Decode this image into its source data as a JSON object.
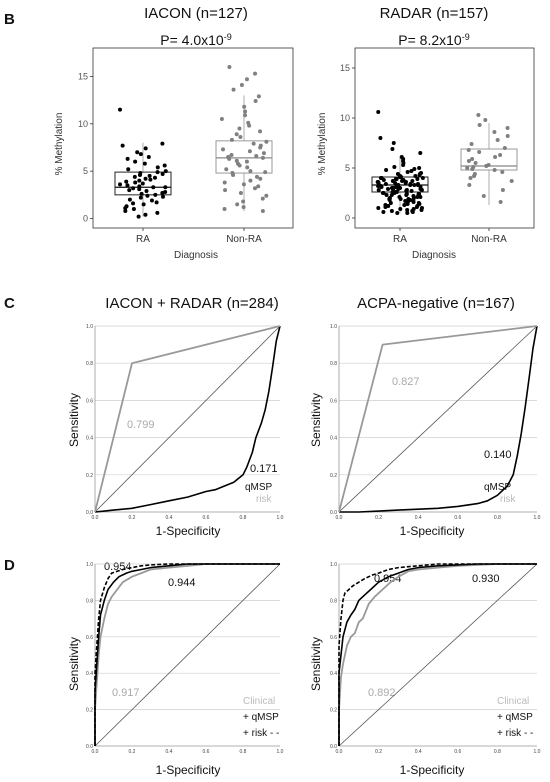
{
  "panels": {
    "B": {
      "label": "B",
      "charts": [
        {
          "type": "box-scatter",
          "title": "IACON (n=127)",
          "pvalue_prefix": "P= 4.0x10",
          "pvalue_exp": "-9",
          "ylabel": "% Methylation",
          "xlabel": "Diagnosis",
          "categories": [
            "RA",
            "Non-RA"
          ],
          "ylim": [
            -1,
            18
          ],
          "yticks": [
            0,
            5,
            10,
            15
          ],
          "colors": {
            "RA": "#000000",
            "Non-RA": "#808080"
          },
          "boxes": {
            "RA": {
              "q1": 2.5,
              "median": 3.3,
              "q3": 4.9,
              "whisker_low": 0.2,
              "whisker_high": 8.0
            },
            "Non-RA": {
              "q1": 4.8,
              "median": 6.4,
              "q3": 8.2,
              "whisker_low": 0.8,
              "whisker_high": 13.0
            }
          },
          "points": {
            "RA": [
              11.5,
              7.9,
              7.7,
              7.4,
              7.0,
              6.8,
              6.5,
              6.3,
              6.0,
              5.8,
              5.6,
              5.4,
              5.2,
              5.0,
              4.9,
              4.8,
              4.7,
              4.6,
              4.5,
              4.4,
              4.3,
              4.2,
              4.1,
              4.0,
              3.9,
              3.8,
              3.7,
              3.6,
              3.5,
              3.4,
              3.3,
              3.3,
              3.2,
              3.1,
              3.0,
              2.9,
              2.8,
              2.7,
              2.6,
              2.5,
              2.4,
              2.3,
              2.2,
              2.0,
              1.9,
              1.7,
              1.6,
              1.5,
              1.3,
              1.1,
              1.0,
              0.8,
              0.6,
              0.4,
              0.2
            ],
            "Non-RA": [
              16.0,
              15.3,
              14.7,
              14.1,
              13.6,
              12.9,
              12.4,
              11.8,
              11.3,
              10.9,
              10.5,
              10.1,
              9.8,
              9.5,
              9.2,
              8.9,
              8.6,
              8.3,
              8.1,
              7.9,
              7.7,
              7.5,
              7.3,
              7.1,
              6.9,
              6.7,
              6.6,
              6.5,
              6.4,
              6.3,
              6.1,
              6.0,
              5.8,
              5.6,
              5.4,
              5.2,
              5.0,
              4.9,
              4.8,
              4.6,
              4.4,
              4.2,
              4.0,
              3.8,
              3.6,
              3.4,
              3.2,
              3.0,
              2.7,
              2.4,
              2.1,
              1.8,
              1.5,
              1.2,
              1.0,
              0.8
            ]
          }
        },
        {
          "type": "box-scatter",
          "title": "RADAR (n=157)",
          "pvalue_prefix": "P= 8.2x10",
          "pvalue_exp": "-9",
          "ylabel": "% Methylation",
          "xlabel": "Diagnosis",
          "categories": [
            "RA",
            "Non-RA"
          ],
          "ylim": [
            -1,
            17
          ],
          "yticks": [
            0,
            5,
            10,
            15
          ],
          "colors": {
            "RA": "#000000",
            "Non-RA": "#808080"
          },
          "boxes": {
            "RA": {
              "q1": 2.6,
              "median": 3.3,
              "q3": 4.1,
              "whisker_low": 0.5,
              "whisker_high": 6.1
            },
            "Non-RA": {
              "q1": 4.8,
              "median": 5.2,
              "q3": 6.9,
              "whisker_low": 1.3,
              "whisker_high": 9.5
            }
          },
          "points": {
            "RA": [
              10.6,
              8.0,
              7.5,
              6.9,
              6.5,
              6.1,
              5.9,
              5.7,
              5.5,
              5.3,
              5.1,
              5.0,
              4.9,
              4.8,
              4.7,
              4.6,
              4.5,
              4.4,
              4.3,
              4.2,
              4.1,
              4.1,
              4.0,
              4.0,
              3.9,
              3.9,
              3.8,
              3.8,
              3.7,
              3.7,
              3.6,
              3.6,
              3.5,
              3.5,
              3.4,
              3.4,
              3.3,
              3.3,
              3.3,
              3.2,
              3.2,
              3.1,
              3.1,
              3.0,
              3.0,
              2.9,
              2.9,
              2.8,
              2.8,
              2.7,
              2.7,
              2.6,
              2.6,
              2.5,
              2.5,
              2.4,
              2.4,
              2.3,
              2.3,
              2.2,
              2.2,
              2.1,
              2.1,
              2.0,
              2.0,
              1.9,
              1.9,
              1.8,
              1.8,
              1.7,
              1.7,
              1.6,
              1.6,
              1.5,
              1.5,
              1.4,
              1.4,
              1.3,
              1.3,
              1.2,
              1.2,
              1.1,
              1.1,
              1.0,
              1.0,
              0.9,
              0.9,
              0.8,
              0.8,
              0.7,
              0.7,
              0.6,
              0.6,
              0.5,
              0.5,
              3.5,
              3.2,
              2.9,
              4.4,
              2.1,
              3.6,
              3.0,
              2.7,
              3.3,
              4.0,
              2.4,
              3.8,
              3.1,
              2.6,
              3.4,
              2.8,
              1.9,
              4.2,
              3.7,
              2.3,
              3.9,
              2.5,
              3.2,
              3.0,
              2.2
            ],
            "Non-RA": [
              10.3,
              9.8,
              9.3,
              9.0,
              8.6,
              8.2,
              7.8,
              7.4,
              7.0,
              6.8,
              6.6,
              6.3,
              6.1,
              5.9,
              5.7,
              5.5,
              5.3,
              5.2,
              5.1,
              5.0,
              4.9,
              4.8,
              4.6,
              4.4,
              4.2,
              4.0,
              3.7,
              3.3,
              2.8,
              2.2,
              1.6
            ]
          }
        }
      ]
    },
    "C": {
      "label": "C",
      "charts": [
        {
          "type": "line",
          "title": "IACON + RADAR (n=284)",
          "xlabel": "1-Specificity",
          "ylabel": "Sensitivity",
          "ticks": [
            "0.0",
            "0.2",
            "0.4",
            "0.6",
            "0.8",
            "1.0"
          ],
          "auc_qmsp": "0.171",
          "auc_risk": "0.799",
          "legend": [
            "qMSP",
            "risk"
          ],
          "series": [
            {
              "key": "qmsp",
              "color": "#000000",
              "x": [
                0,
                0.05,
                0.1,
                0.2,
                0.3,
                0.4,
                0.5,
                0.6,
                0.65,
                0.7,
                0.75,
                0.8,
                0.82,
                0.85,
                0.87,
                0.9,
                0.92,
                0.94,
                0.96,
                0.98,
                1.0
              ],
              "y": [
                0,
                0.005,
                0.01,
                0.02,
                0.04,
                0.06,
                0.08,
                0.11,
                0.12,
                0.14,
                0.16,
                0.2,
                0.24,
                0.32,
                0.4,
                0.48,
                0.55,
                0.65,
                0.78,
                0.92,
                1.0
              ]
            },
            {
              "key": "risk",
              "color": "#999999",
              "x": [
                0,
                0.2,
                1.0
              ],
              "y": [
                0,
                0.8,
                1.0
              ]
            }
          ]
        },
        {
          "type": "line",
          "title": "ACPA-negative (n=167)",
          "xlabel": "1-Specificity",
          "ylabel": "Sensitivity",
          "ticks": [
            "0.0",
            "0.2",
            "0.4",
            "0.6",
            "0.8",
            "1.0"
          ],
          "auc_qmsp": "0.140",
          "auc_risk": "0.827",
          "legend": [
            "qMSP",
            "risk"
          ],
          "series": [
            {
              "key": "qmsp",
              "color": "#000000",
              "x": [
                0,
                0.1,
                0.2,
                0.3,
                0.4,
                0.5,
                0.6,
                0.7,
                0.75,
                0.8,
                0.85,
                0.88,
                0.9,
                0.92,
                0.94,
                0.96,
                0.98,
                1.0
              ],
              "y": [
                0,
                0.0,
                0.005,
                0.01,
                0.015,
                0.02,
                0.03,
                0.045,
                0.06,
                0.09,
                0.14,
                0.2,
                0.3,
                0.42,
                0.56,
                0.72,
                0.88,
                1.0
              ]
            },
            {
              "key": "risk",
              "color": "#999999",
              "x": [
                0,
                0.22,
                1.0
              ],
              "y": [
                0,
                0.9,
                1.0
              ]
            }
          ]
        }
      ]
    },
    "D": {
      "label": "D",
      "charts": [
        {
          "type": "line",
          "xlabel": "1-Specificity",
          "ylabel": "Sensitivity",
          "ticks": [
            "0.0",
            "0.2",
            "0.4",
            "0.6",
            "0.8",
            "1.0"
          ],
          "auc_clinical": "0.917",
          "auc_qmsp": "0.944",
          "auc_risk": "0.954",
          "legend": [
            "Clinical",
            "+ qMSP",
            "+ risk - -"
          ],
          "series": [
            {
              "key": "clinical",
              "color": "#999999",
              "dash": "",
              "x": [
                0,
                0.0,
                0.01,
                0.02,
                0.03,
                0.05,
                0.07,
                0.09,
                0.12,
                0.15,
                0.2,
                0.25,
                0.3,
                0.4,
                0.5,
                0.6,
                0.8,
                1.0
              ],
              "y": [
                0,
                0.2,
                0.35,
                0.5,
                0.6,
                0.7,
                0.78,
                0.82,
                0.86,
                0.9,
                0.93,
                0.95,
                0.97,
                0.98,
                0.99,
                1.0,
                1.0,
                1.0
              ]
            },
            {
              "key": "qmsp",
              "color": "#000000",
              "dash": "",
              "x": [
                0,
                0.0,
                0.01,
                0.02,
                0.03,
                0.05,
                0.07,
                0.1,
                0.13,
                0.17,
                0.2,
                0.25,
                0.3,
                0.4,
                0.5,
                0.7,
                1.0
              ],
              "y": [
                0,
                0.3,
                0.45,
                0.6,
                0.72,
                0.8,
                0.86,
                0.9,
                0.93,
                0.95,
                0.96,
                0.97,
                0.98,
                0.99,
                1.0,
                1.0,
                1.0
              ]
            },
            {
              "key": "risk",
              "color": "#000000",
              "dash": "4,2",
              "x": [
                0,
                0.0,
                0.01,
                0.02,
                0.03,
                0.05,
                0.07,
                0.09,
                0.12,
                0.15,
                0.2,
                0.25,
                0.3,
                0.4,
                0.5,
                1.0
              ],
              "y": [
                0,
                0.4,
                0.55,
                0.7,
                0.8,
                0.87,
                0.92,
                0.95,
                0.96,
                0.97,
                0.98,
                0.99,
                0.995,
                1.0,
                1.0,
                1.0
              ]
            }
          ]
        },
        {
          "type": "line",
          "xlabel": "1-Specificity",
          "ylabel": "Sensitivity",
          "ticks": [
            "0.0",
            "0.2",
            "0.4",
            "0.6",
            "0.8",
            "1.0"
          ],
          "auc_clinical": "0.892",
          "auc_qmsp": "0.930",
          "auc_risk": "0.954",
          "legend": [
            "Clinical",
            "+ qMSP",
            "+ risk - -"
          ],
          "series": [
            {
              "key": "clinical",
              "color": "#999999",
              "dash": "",
              "x": [
                0,
                0.0,
                0.01,
                0.02,
                0.04,
                0.06,
                0.08,
                0.1,
                0.12,
                0.15,
                0.18,
                0.22,
                0.26,
                0.3,
                0.35,
                0.4,
                0.5,
                0.6,
                0.8,
                1.0
              ],
              "y": [
                0,
                0.2,
                0.38,
                0.45,
                0.55,
                0.6,
                0.62,
                0.68,
                0.7,
                0.78,
                0.82,
                0.86,
                0.9,
                0.93,
                0.96,
                0.97,
                0.98,
                0.99,
                1.0,
                1.0
              ]
            },
            {
              "key": "qmsp",
              "color": "#000000",
              "dash": "",
              "x": [
                0,
                0.0,
                0.01,
                0.02,
                0.04,
                0.06,
                0.08,
                0.1,
                0.13,
                0.16,
                0.2,
                0.25,
                0.3,
                0.35,
                0.4,
                0.5,
                0.7,
                1.0
              ],
              "y": [
                0,
                0.4,
                0.5,
                0.6,
                0.68,
                0.72,
                0.75,
                0.8,
                0.83,
                0.86,
                0.9,
                0.93,
                0.95,
                0.97,
                0.98,
                0.99,
                1.0,
                1.0
              ]
            },
            {
              "key": "risk",
              "color": "#000000",
              "dash": "4,2",
              "x": [
                0,
                0.0,
                0.01,
                0.02,
                0.03,
                0.05,
                0.07,
                0.1,
                0.13,
                0.17,
                0.2,
                0.25,
                0.3,
                0.4,
                0.5,
                1.0
              ],
              "y": [
                0,
                0.55,
                0.7,
                0.8,
                0.84,
                0.86,
                0.88,
                0.9,
                0.92,
                0.94,
                0.95,
                0.97,
                0.98,
                0.99,
                1.0,
                1.0
              ]
            }
          ]
        }
      ]
    }
  },
  "chart_data": [
    {
      "type": "scatter",
      "title": "IACON (n=127)",
      "ylabel": "% Methylation",
      "xlabel": "Diagnosis",
      "categories": [
        "RA",
        "Non-RA"
      ],
      "ylim": [
        -1,
        18
      ]
    },
    {
      "type": "scatter",
      "title": "RADAR (n=157)",
      "ylabel": "% Methylation",
      "xlabel": "Diagnosis",
      "categories": [
        "RA",
        "Non-RA"
      ],
      "ylim": [
        -1,
        17
      ]
    },
    {
      "type": "line",
      "title": "IACON + RADAR (n=284)",
      "xlabel": "1-Specificity",
      "ylabel": "Sensitivity",
      "xlim": [
        0,
        1
      ],
      "ylim": [
        0,
        1
      ]
    },
    {
      "type": "line",
      "title": "ACPA-negative (n=167)",
      "xlabel": "1-Specificity",
      "ylabel": "Sensitivity",
      "xlim": [
        0,
        1
      ],
      "ylim": [
        0,
        1
      ]
    },
    {
      "type": "line",
      "xlabel": "1-Specificity",
      "ylabel": "Sensitivity",
      "xlim": [
        0,
        1
      ],
      "ylim": [
        0,
        1
      ]
    },
    {
      "type": "line",
      "xlabel": "1-Specificity",
      "ylabel": "Sensitivity",
      "xlim": [
        0,
        1
      ],
      "ylim": [
        0,
        1
      ]
    }
  ]
}
